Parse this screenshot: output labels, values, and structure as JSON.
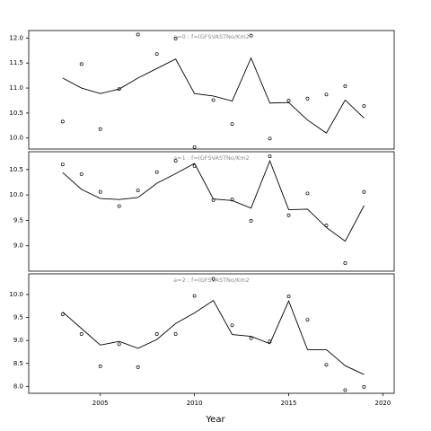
{
  "chart_data": {
    "type": "line",
    "xlabel": "Year",
    "x_ticks": [
      2005,
      2010,
      2015,
      2020
    ],
    "xlim": [
      2001.2,
      2020.6
    ],
    "panels": [
      {
        "title": "a=0 : f=IGFSVASTNo/Km2",
        "ylim": [
          9.78,
          12.15
        ],
        "y_ticks": [
          10.0,
          10.5,
          11.0,
          11.5,
          12.0
        ],
        "y_tick_labels": [
          "10.0",
          "10.5",
          "11.0",
          "11.5",
          "12.0"
        ],
        "observed": {
          "x": [
            2003,
            2004,
            2005,
            2006,
            2007,
            2008,
            2009,
            2010,
            2011,
            2012,
            2013,
            2014,
            2015,
            2016,
            2017,
            2018,
            2019
          ],
          "y": [
            10.33,
            11.48,
            10.18,
            10.98,
            12.07,
            11.68,
            11.99,
            9.82,
            10.76,
            10.28,
            12.05,
            9.99,
            10.75,
            10.79,
            10.87,
            11.04,
            10.64
          ]
        },
        "fitted": {
          "x": [
            2003,
            2004,
            2005,
            2006,
            2007,
            2008,
            2009,
            2010,
            2011,
            2012,
            2013,
            2014,
            2015,
            2016,
            2017,
            2018,
            2019
          ],
          "y": [
            11.2,
            11.0,
            10.89,
            10.98,
            11.2,
            11.39,
            11.58,
            10.89,
            10.84,
            10.74,
            11.6,
            10.7,
            10.71,
            10.36,
            10.1,
            10.76,
            10.4
          ]
        }
      },
      {
        "title": "a=1 : f=IGFSVASTNo/Km2",
        "ylim": [
          8.5,
          10.85
        ],
        "y_ticks": [
          9.0,
          9.5,
          10.0,
          10.5
        ],
        "y_tick_labels": [
          "9.0",
          "9.5",
          "10.0",
          "10.5"
        ],
        "observed": {
          "x": [
            2003,
            2004,
            2005,
            2006,
            2007,
            2008,
            2009,
            2010,
            2011,
            2012,
            2013,
            2014,
            2015,
            2016,
            2017,
            2018,
            2019
          ],
          "y": [
            10.6,
            10.41,
            10.06,
            9.78,
            10.09,
            10.45,
            10.67,
            10.57,
            9.9,
            9.91,
            9.49,
            10.76,
            9.6,
            10.03,
            9.4,
            8.66,
            10.06
          ]
        },
        "fitted": {
          "x": [
            2003,
            2004,
            2005,
            2006,
            2007,
            2008,
            2009,
            2010,
            2011,
            2012,
            2013,
            2014,
            2015,
            2016,
            2017,
            2018,
            2019
          ],
          "y": [
            10.44,
            10.11,
            9.93,
            9.91,
            9.95,
            10.23,
            10.42,
            10.62,
            9.92,
            9.89,
            9.74,
            10.67,
            9.71,
            9.72,
            9.36,
            9.09,
            9.79
          ]
        }
      },
      {
        "title": "a=2 : f=IGFSVASTNo/Km2",
        "ylim": [
          7.85,
          10.45
        ],
        "y_ticks": [
          8.0,
          8.5,
          9.0,
          9.5,
          10.0
        ],
        "y_tick_labels": [
          "8.0",
          "8.5",
          "9.0",
          "9.5",
          "10.0"
        ],
        "observed": {
          "x": [
            2003,
            2004,
            2005,
            2006,
            2007,
            2008,
            2009,
            2010,
            2011,
            2012,
            2013,
            2014,
            2015,
            2016,
            2017,
            2018,
            2019
          ],
          "y": [
            9.57,
            9.14,
            8.44,
            8.92,
            8.42,
            9.14,
            9.14,
            9.97,
            10.34,
            9.33,
            9.05,
            8.98,
            9.96,
            9.45,
            8.47,
            7.92,
            7.99
          ]
        },
        "fitted": {
          "x": [
            2003,
            2004,
            2005,
            2006,
            2007,
            2008,
            2009,
            2010,
            2011,
            2012,
            2013,
            2014,
            2015,
            2016,
            2017,
            2018,
            2019
          ],
          "y": [
            9.62,
            9.26,
            8.9,
            8.98,
            8.83,
            9.02,
            9.37,
            9.6,
            9.87,
            9.13,
            9.09,
            8.93,
            9.86,
            8.8,
            8.8,
            8.45,
            8.26
          ]
        }
      }
    ]
  }
}
